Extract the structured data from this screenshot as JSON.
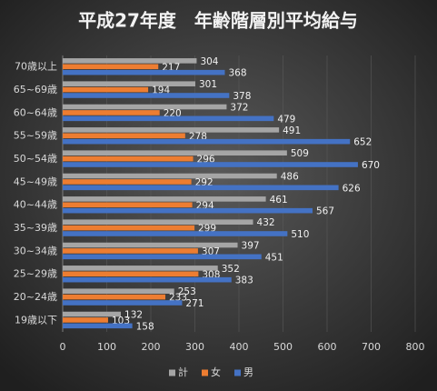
{
  "chart_data": {
    "type": "hbar",
    "title": "平成27年度　年齢階層別平均給与",
    "categories": [
      "70歳以上",
      "65~69歳",
      "60~64歳",
      "55~59歳",
      "50~54歳",
      "45~49歳",
      "40~44歳",
      "35~39歳",
      "30~34歳",
      "25~29歳",
      "20~24歳",
      "19歳以下"
    ],
    "series": [
      {
        "name": "計",
        "color": "#a5a5a5",
        "values": [
          304,
          301,
          372,
          491,
          509,
          486,
          461,
          432,
          397,
          352,
          253,
          132
        ]
      },
      {
        "name": "女",
        "color": "#ed7d31",
        "values": [
          217,
          194,
          220,
          278,
          296,
          292,
          294,
          299,
          307,
          308,
          233,
          103
        ]
      },
      {
        "name": "男",
        "color": "#4472c4",
        "values": [
          368,
          378,
          479,
          652,
          670,
          626,
          567,
          510,
          451,
          383,
          271,
          158
        ]
      }
    ],
    "xlim": [
      0,
      800
    ],
    "xticks": [
      0,
      100,
      200,
      300,
      400,
      500,
      600,
      700,
      800
    ],
    "grid": true,
    "legend": "bottom"
  }
}
